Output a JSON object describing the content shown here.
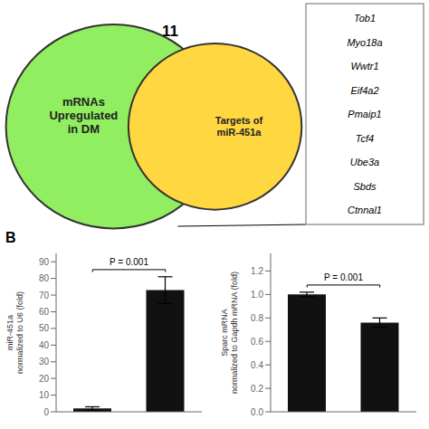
{
  "chart_data": [
    {
      "type": "venn",
      "categories": [
        "mRNAs\nUpregulated\nin DM",
        "Targets of\nmiR-451a"
      ],
      "colors": [
        "#90EE60",
        "#FFD740"
      ],
      "annotations": [
        "11"
      ],
      "items": [
        "Tob1",
        "Myo18a",
        "Wwtr1",
        "Eif4a2",
        "Pmaip1",
        "Tcf4",
        "Ube3a",
        "Sbds",
        "Ctnnal1"
      ]
    },
    {
      "type": "bar",
      "panel_label": "B",
      "categories": [
        null,
        null
      ],
      "values": [
        2,
        73
      ],
      "errors": [
        1,
        8
      ],
      "color": "#111111",
      "ylabel": "miR-451a\nnormalized to U6 (fold)",
      "ylim": [
        0,
        95
      ],
      "yticks": [
        0,
        10,
        20,
        30,
        40,
        50,
        60,
        70,
        80,
        90
      ],
      "annotations": [
        "P = 0.001"
      ]
    },
    {
      "type": "bar",
      "categories": [
        null,
        null
      ],
      "values": [
        1.0,
        0.76
      ],
      "errors": [
        0.02,
        0.04
      ],
      "color": "#111111",
      "ylabel": "Sparc mRNA\nnormalized to Gapdh mRNA (fold)",
      "ylim": [
        0,
        1.35
      ],
      "yticks": [
        {
          "value": 0,
          "label": "0.0"
        },
        0.2,
        0.4,
        0.6,
        0.8,
        {
          "value": 1,
          "label": "1.0"
        },
        1.2
      ],
      "annotations": [
        "P = 0.001"
      ]
    }
  ]
}
